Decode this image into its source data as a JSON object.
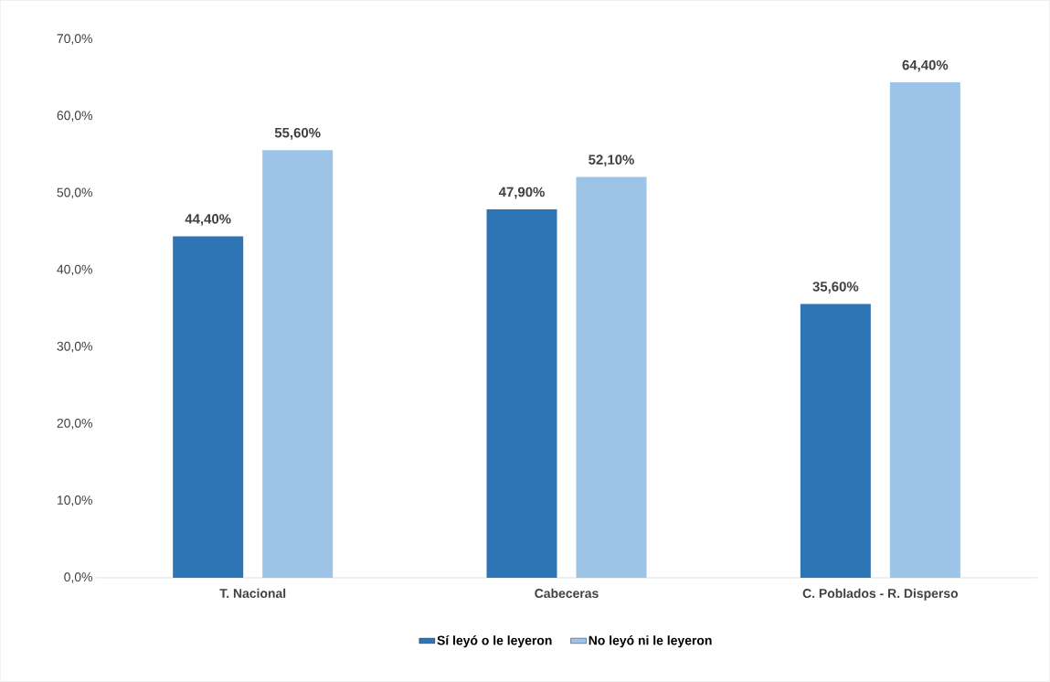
{
  "chart_data": {
    "type": "bar",
    "categories": [
      "T. Nacional",
      "Cabeceras",
      "C. Poblados - R. Disperso"
    ],
    "series": [
      {
        "name": "Sí leyó o le leyeron",
        "color": "#2e75b6",
        "values": [
          44.4,
          47.9,
          35.6
        ],
        "value_labels": [
          "44,40%",
          "47,90%",
          "35,60%"
        ]
      },
      {
        "name": "No leyó ni le leyeron",
        "color": "#9dc3e6",
        "values": [
          55.6,
          52.1,
          64.4
        ],
        "value_labels": [
          "55,60%",
          "52,10%",
          "64,40%"
        ]
      }
    ],
    "ylim": [
      0,
      70
    ],
    "yticks": [
      {
        "value": 0,
        "label": "0,0%"
      },
      {
        "value": 10,
        "label": "10,0%"
      },
      {
        "value": 20,
        "label": "20,0%"
      },
      {
        "value": 30,
        "label": "30,0%"
      },
      {
        "value": 40,
        "label": "40,0%"
      },
      {
        "value": 50,
        "label": "50,0%"
      },
      {
        "value": 60,
        "label": "60,0%"
      },
      {
        "value": 70,
        "label": "70,0%"
      }
    ],
    "legend": "bottom"
  }
}
